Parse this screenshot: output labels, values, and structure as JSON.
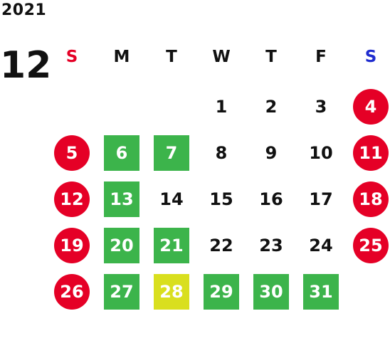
{
  "year": "2021",
  "month": "12",
  "colors": {
    "holiday": "#e50026",
    "green": "#3cb44b",
    "yellow": "#d9df1e",
    "sunday_header": "#e50026",
    "saturday_header": "#1f2ccf"
  },
  "weekdays": [
    {
      "label": "S",
      "color": "#e50026"
    },
    {
      "label": "M",
      "color": "#111111"
    },
    {
      "label": "T",
      "color": "#111111"
    },
    {
      "label": "W",
      "color": "#111111"
    },
    {
      "label": "T",
      "color": "#111111"
    },
    {
      "label": "F",
      "color": "#111111"
    },
    {
      "label": "S",
      "color": "#1f2ccf"
    }
  ],
  "weeks": [
    [
      null,
      null,
      null,
      {
        "d": "1",
        "s": "plain"
      },
      {
        "d": "2",
        "s": "plain"
      },
      {
        "d": "3",
        "s": "plain"
      },
      {
        "d": "4",
        "s": "red"
      }
    ],
    [
      {
        "d": "5",
        "s": "red"
      },
      {
        "d": "6",
        "s": "green"
      },
      {
        "d": "7",
        "s": "green"
      },
      {
        "d": "8",
        "s": "plain"
      },
      {
        "d": "9",
        "s": "plain"
      },
      {
        "d": "10",
        "s": "plain"
      },
      {
        "d": "11",
        "s": "red"
      }
    ],
    [
      {
        "d": "12",
        "s": "red"
      },
      {
        "d": "13",
        "s": "green"
      },
      {
        "d": "14",
        "s": "plain"
      },
      {
        "d": "15",
        "s": "plain"
      },
      {
        "d": "16",
        "s": "plain"
      },
      {
        "d": "17",
        "s": "plain"
      },
      {
        "d": "18",
        "s": "red"
      }
    ],
    [
      {
        "d": "19",
        "s": "red"
      },
      {
        "d": "20",
        "s": "green"
      },
      {
        "d": "21",
        "s": "green"
      },
      {
        "d": "22",
        "s": "plain"
      },
      {
        "d": "23",
        "s": "plain"
      },
      {
        "d": "24",
        "s": "plain"
      },
      {
        "d": "25",
        "s": "red"
      }
    ],
    [
      {
        "d": "26",
        "s": "red"
      },
      {
        "d": "27",
        "s": "green"
      },
      {
        "d": "28",
        "s": "yellow"
      },
      {
        "d": "29",
        "s": "green"
      },
      {
        "d": "30",
        "s": "green"
      },
      {
        "d": "31",
        "s": "green"
      },
      null
    ]
  ]
}
